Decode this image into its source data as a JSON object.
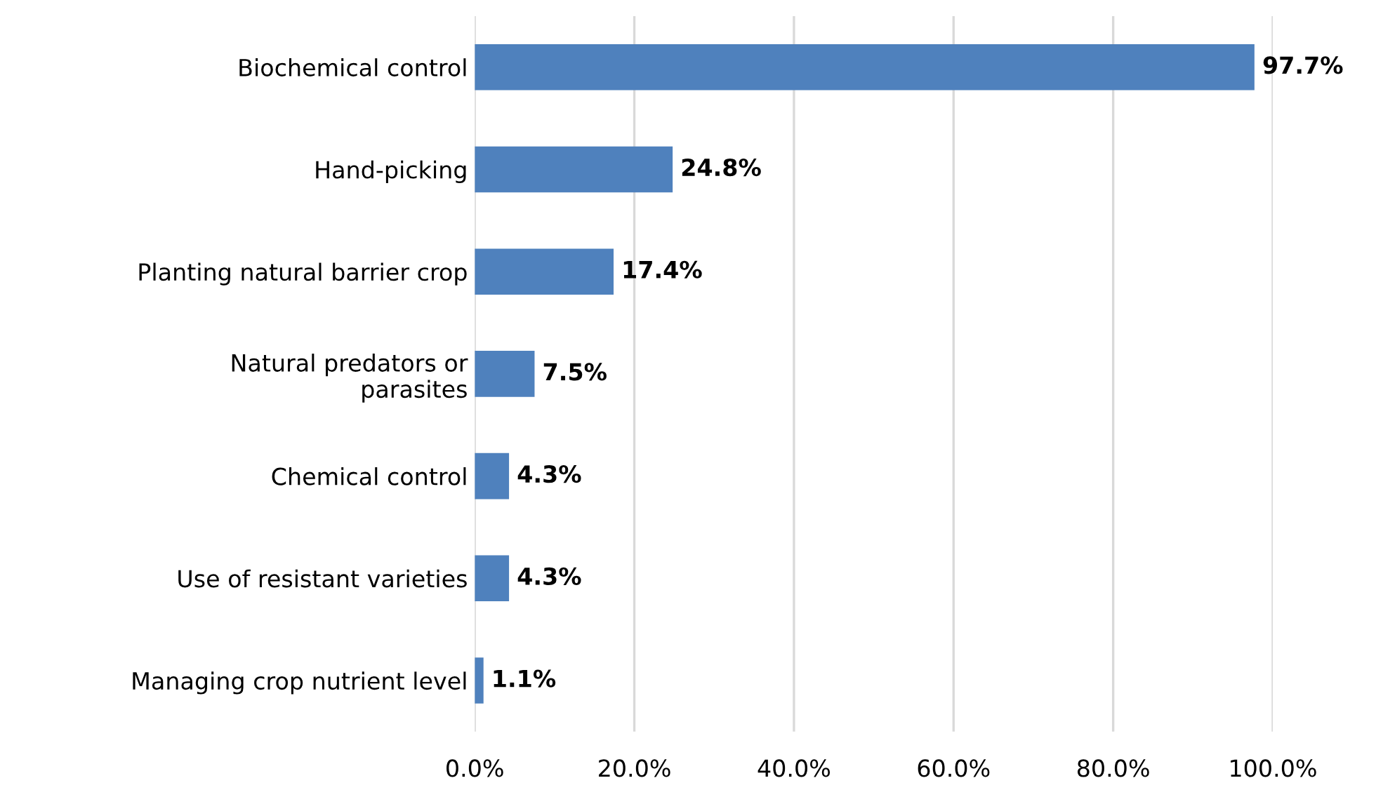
{
  "chart_data": {
    "type": "bar",
    "orientation": "horizontal",
    "categories": [
      "Biochemical control",
      "Hand-picking",
      "Planting natural barrier crop",
      "Natural predators or\nparasites",
      "Chemical control",
      "Use of resistant varieties",
      "Managing crop nutrient level"
    ],
    "values": [
      97.7,
      24.8,
      17.4,
      7.5,
      4.3,
      4.3,
      1.1
    ],
    "value_labels": [
      "97.7%",
      "24.8%",
      "17.4%",
      "7.5%",
      "4.3%",
      "4.3%",
      "1.1%"
    ],
    "color": "#4f81bd",
    "xlim": [
      0,
      100
    ],
    "xticks": [
      {
        "value": 0,
        "label": "0.0%"
      },
      {
        "value": 20,
        "label": "20.0%"
      },
      {
        "value": 40,
        "label": "40.0%"
      },
      {
        "value": 60,
        "label": "60.0%"
      },
      {
        "value": 80,
        "label": "80.0%"
      },
      {
        "value": 100,
        "label": "100.0%"
      }
    ],
    "grid": "x"
  }
}
